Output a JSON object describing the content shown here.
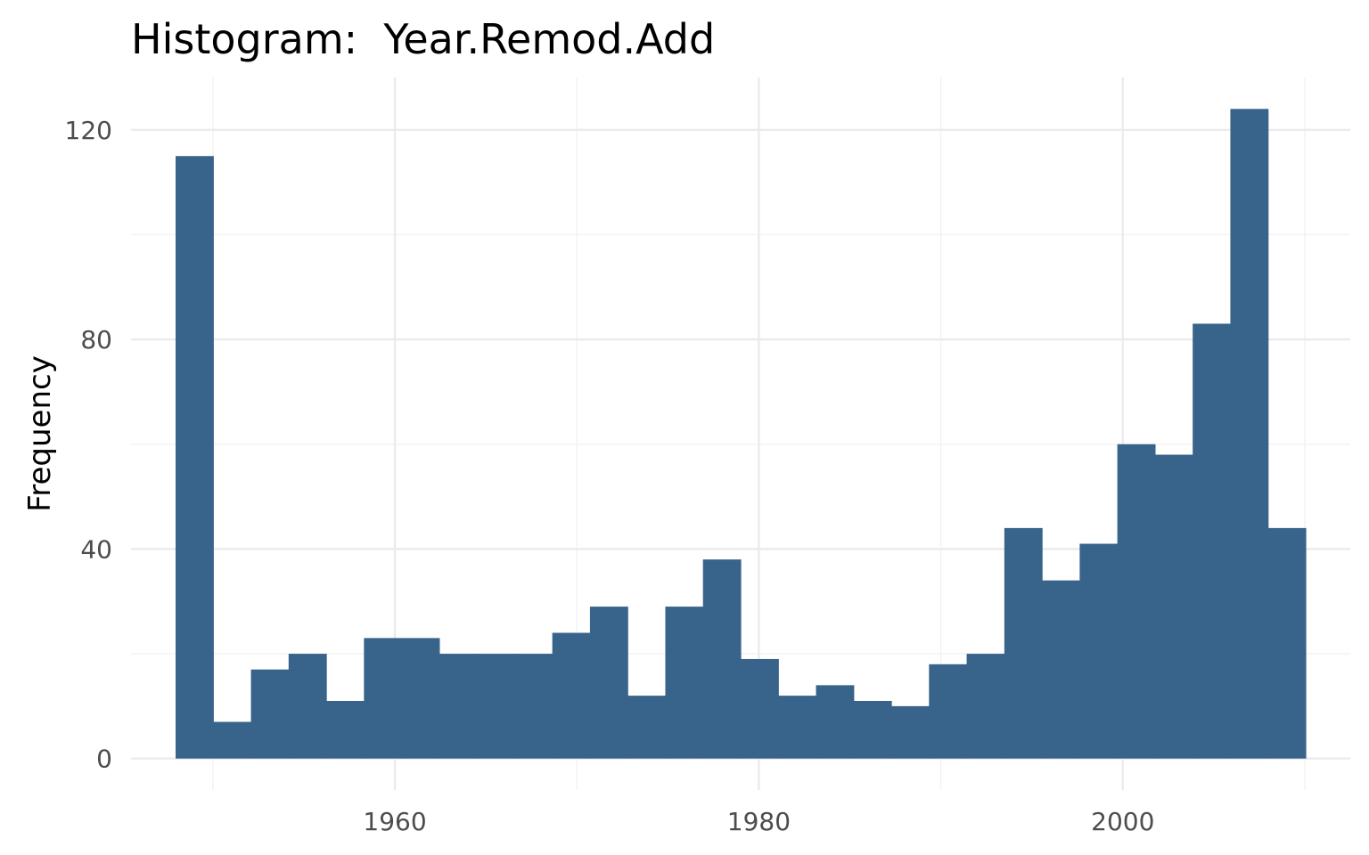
{
  "chart_data": {
    "type": "bar",
    "title": "Histogram:  Year.Remod.Add",
    "xlabel": "",
    "ylabel": "Frequency",
    "bar_color": "#38638A",
    "grid": true,
    "xlim": [
      1945.5,
      2012.5
    ],
    "ylim": [
      -6,
      130
    ],
    "x_ticks": [
      1960,
      1980,
      2000
    ],
    "x_minor_ticks": [
      1950,
      1970,
      1990,
      2010
    ],
    "y_ticks": [
      0,
      40,
      80,
      120
    ],
    "y_minor_ticks": [
      20,
      60,
      100
    ],
    "bins": [
      {
        "x0": 1947.95,
        "x1": 1950.02,
        "count": 115
      },
      {
        "x0": 1950.02,
        "x1": 1952.09,
        "count": 7
      },
      {
        "x0": 1952.09,
        "x1": 1954.16,
        "count": 17
      },
      {
        "x0": 1954.16,
        "x1": 1956.23,
        "count": 20
      },
      {
        "x0": 1956.23,
        "x1": 1958.3,
        "count": 11
      },
      {
        "x0": 1958.3,
        "x1": 1960.37,
        "count": 23
      },
      {
        "x0": 1960.37,
        "x1": 1962.44,
        "count": 23
      },
      {
        "x0": 1962.44,
        "x1": 1964.51,
        "count": 20
      },
      {
        "x0": 1964.51,
        "x1": 1966.58,
        "count": 20
      },
      {
        "x0": 1966.58,
        "x1": 1968.65,
        "count": 20
      },
      {
        "x0": 1968.65,
        "x1": 1970.72,
        "count": 24
      },
      {
        "x0": 1970.72,
        "x1": 1972.79,
        "count": 29
      },
      {
        "x0": 1972.79,
        "x1": 1974.86,
        "count": 12
      },
      {
        "x0": 1974.86,
        "x1": 1976.93,
        "count": 29
      },
      {
        "x0": 1976.93,
        "x1": 1979.0,
        "count": 38
      },
      {
        "x0": 1979.0,
        "x1": 1981.07,
        "count": 19
      },
      {
        "x0": 1981.07,
        "x1": 1983.14,
        "count": 12
      },
      {
        "x0": 1983.14,
        "x1": 1985.21,
        "count": 14
      },
      {
        "x0": 1985.21,
        "x1": 1987.28,
        "count": 11
      },
      {
        "x0": 1987.28,
        "x1": 1989.35,
        "count": 10
      },
      {
        "x0": 1989.35,
        "x1": 1991.42,
        "count": 18
      },
      {
        "x0": 1991.42,
        "x1": 1993.49,
        "count": 20
      },
      {
        "x0": 1993.49,
        "x1": 1995.56,
        "count": 44
      },
      {
        "x0": 1995.56,
        "x1": 1997.63,
        "count": 34
      },
      {
        "x0": 1997.63,
        "x1": 1999.7,
        "count": 41
      },
      {
        "x0": 1999.7,
        "x1": 2001.77,
        "count": 60
      },
      {
        "x0": 2001.77,
        "x1": 2003.84,
        "count": 58
      },
      {
        "x0": 2003.84,
        "x1": 2005.91,
        "count": 83
      },
      {
        "x0": 2005.91,
        "x1": 2007.98,
        "count": 124
      },
      {
        "x0": 2007.98,
        "x1": 2010.05,
        "count": 44
      }
    ]
  }
}
